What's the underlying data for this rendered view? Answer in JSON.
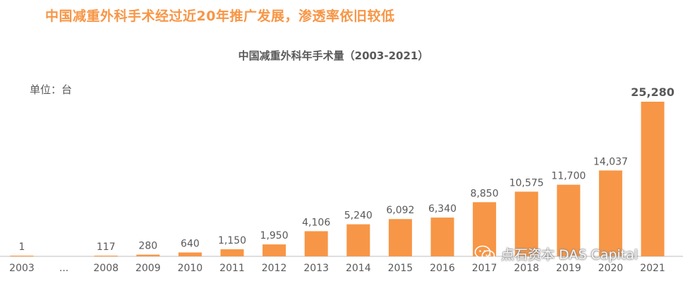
{
  "page": {
    "headline": "中国减重外科手术经过近20年推广发展，渗透率依旧较低",
    "watermark": "点石资本 DAS Capital"
  },
  "colors": {
    "accent": "#F79646",
    "bar": "#F79646",
    "text": "#595959"
  },
  "icons": {
    "watermark_icon": "wechat-icon"
  },
  "chart_data": {
    "type": "bar",
    "title": "中国减重外科年手术量（2003-2021）",
    "unit_label": "单位：台",
    "categories": [
      "2003",
      "...",
      "2008",
      "2009",
      "2010",
      "2011",
      "2012",
      "2013",
      "2014",
      "2015",
      "2016",
      "2017",
      "2018",
      "2019",
      "2020",
      "2021"
    ],
    "values": [
      1,
      null,
      117,
      280,
      640,
      1150,
      1950,
      4106,
      5240,
      6092,
      6340,
      8850,
      10575,
      11700,
      14037,
      25280
    ],
    "data_labels": [
      "1",
      "",
      "117",
      "280",
      "640",
      "1,150",
      "1,950",
      "4,106",
      "5,240",
      "6,092",
      "6,340",
      "8,850",
      "10,575",
      "11,700",
      "14,037",
      "25,280"
    ],
    "ylim": [
      0,
      25280
    ],
    "grid": false,
    "legend": "none"
  }
}
